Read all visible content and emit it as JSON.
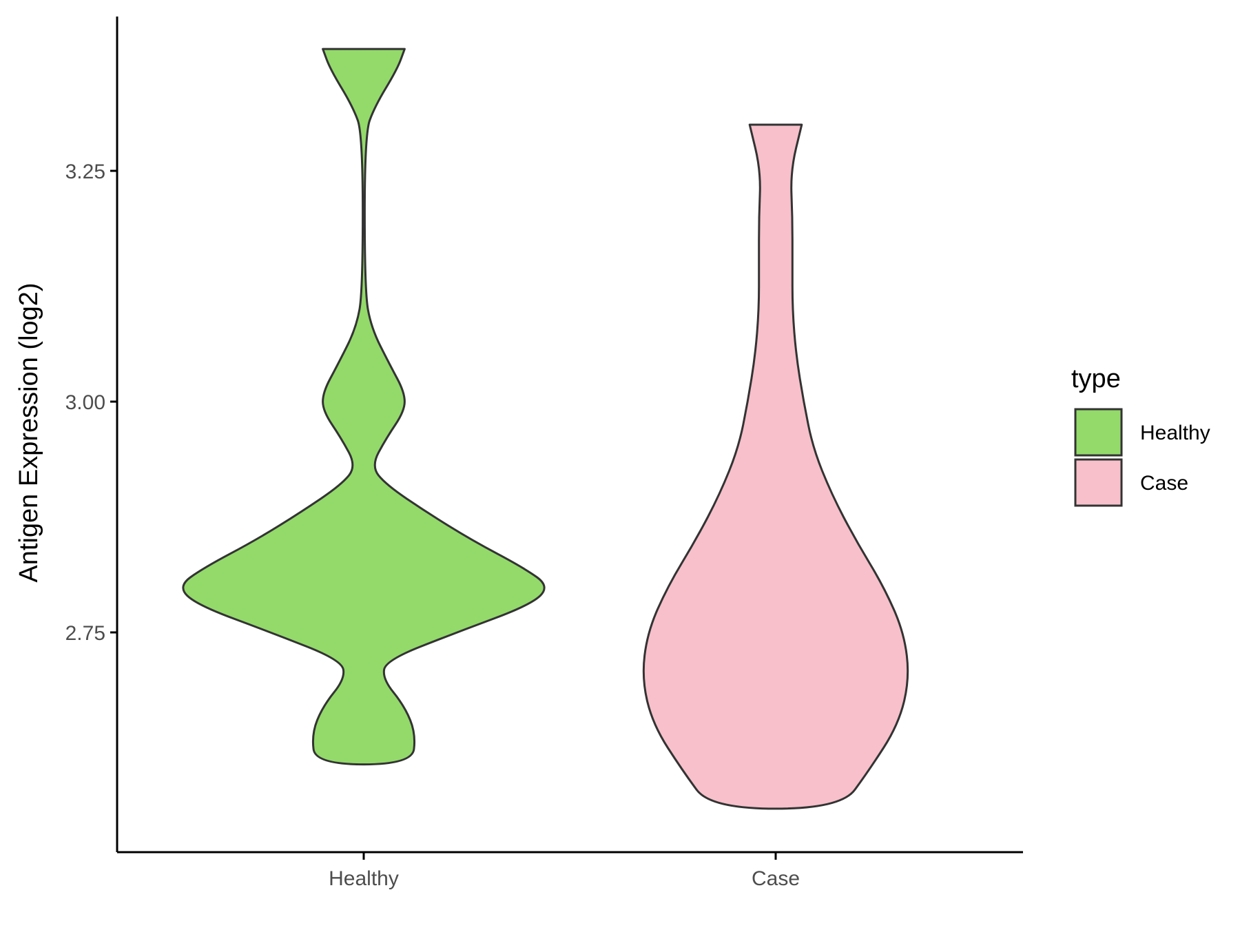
{
  "chart_data": {
    "type": "violin",
    "xlabel": "",
    "ylabel": "Antigen Expression (log2)",
    "ylim": [
      2.51,
      3.42
    ],
    "y_ticks": [
      "2.75",
      "3.00",
      "3.25"
    ],
    "categories": [
      "Healthy",
      "Case"
    ],
    "grid": false,
    "legend": {
      "title": "type",
      "position": "right",
      "entries": [
        "Healthy",
        "Case"
      ]
    },
    "series": [
      {
        "name": "Healthy",
        "color": "#93DA6A",
        "y_min": 2.607,
        "y_max": 3.382,
        "density_profile": [
          [
            2.607,
            0.26
          ],
          [
            2.64,
            0.28
          ],
          [
            2.67,
            0.22
          ],
          [
            2.7,
            0.1
          ],
          [
            2.72,
            0.12
          ],
          [
            2.75,
            0.5
          ],
          [
            2.78,
            0.9
          ],
          [
            2.8,
            1.0
          ],
          [
            2.82,
            0.86
          ],
          [
            2.85,
            0.58
          ],
          [
            2.88,
            0.34
          ],
          [
            2.91,
            0.12
          ],
          [
            2.93,
            0.04
          ],
          [
            2.96,
            0.12
          ],
          [
            2.99,
            0.22
          ],
          [
            3.01,
            0.22
          ],
          [
            3.04,
            0.14
          ],
          [
            3.08,
            0.04
          ],
          [
            3.12,
            0.005
          ],
          [
            3.29,
            0.005
          ],
          [
            3.32,
            0.06
          ],
          [
            3.36,
            0.18
          ],
          [
            3.382,
            0.22
          ]
        ]
      },
      {
        "name": "Case",
        "color": "#F7C0CB",
        "y_min": 2.559,
        "y_max": 3.3,
        "density_profile": [
          [
            2.559,
            0.35
          ],
          [
            2.6,
            0.5
          ],
          [
            2.65,
            0.66
          ],
          [
            2.7,
            0.72
          ],
          [
            2.75,
            0.69
          ],
          [
            2.8,
            0.58
          ],
          [
            2.85,
            0.43
          ],
          [
            2.9,
            0.3
          ],
          [
            2.95,
            0.2
          ],
          [
            3.0,
            0.15
          ],
          [
            3.05,
            0.11
          ],
          [
            3.1,
            0.09
          ],
          [
            3.15,
            0.09
          ],
          [
            3.2,
            0.09
          ],
          [
            3.25,
            0.08
          ],
          [
            3.3,
            0.14
          ]
        ]
      }
    ]
  }
}
